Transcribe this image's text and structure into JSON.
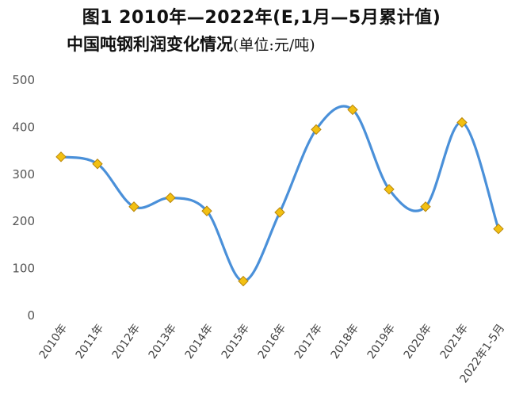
{
  "chart_data": {
    "type": "line",
    "title_line1": "图1 2010年—2022年(E,1月—5月累计值)",
    "title_line2": "中国吨钢利润变化情况",
    "unit_label": "(单位:元/吨)",
    "categories": [
      "2010年",
      "2011年",
      "2012年",
      "2013年",
      "2014年",
      "2015年",
      "2016年",
      "2017年",
      "2018年",
      "2019年",
      "2020年",
      "2021年",
      "2022年1-5月"
    ],
    "values": [
      337,
      322,
      231,
      250,
      222,
      73,
      219,
      395,
      437,
      268,
      231,
      410,
      184
    ],
    "yticks": [
      0,
      100,
      200,
      300,
      400,
      500
    ],
    "ylim": [
      0,
      500
    ],
    "grid": false,
    "line_color": "#4a90d9",
    "marker_color": "#f2c012",
    "marker_edge": "#b8860b"
  }
}
